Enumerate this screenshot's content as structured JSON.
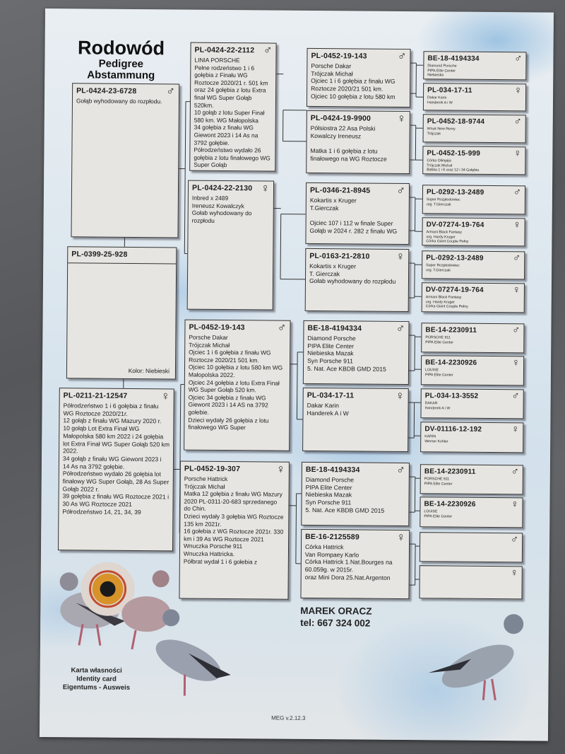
{
  "header": {
    "title": "Rodowód",
    "subtitle_en": "Pedigree",
    "subtitle_de": "Abstammung"
  },
  "subject": {
    "ring": "PL-0424-23-6728",
    "sex": "male",
    "info": "Gołąb wyhodowany do rozpłodu."
  },
  "color_box": {
    "ring": "PL-0399-25-928",
    "color_label": "Kolor: Niebieski"
  },
  "dam": {
    "ring": "PL-0211-21-12547",
    "sex": "female",
    "info": "Półrodzeństwo 1 i 6 gołębia z finału WG Roztocze 2020/21r.\n12 gołąb z finału WG Mazury 2020 r.\n10 gołąb Lot Extra Finał WG Małopolska 580 km 2022 i 24 gołębia lot Extra Finał WG Super Gołąb 520 km 2022.\n34 gołąb z finału WG Giewont 2023 i 14 As na 3792 gołębie.\nPółrodzeństwo wydało 26 gołębia lot finałowy WG Super Gołąb, 28 As Super Gołąb 2022 r.\n39 gołębia z finału WG Roztocze 2021 i 30 As WG Roztocze 2021\nPółrodzeństwo 14, 21, 34, 39"
  },
  "generation2": [
    {
      "ring": "PL-0424-22-2112",
      "sex": "male",
      "info": "LINIA PORSCHE\nPełne rodzeństwo 1 i 6 gołębia z Finału WG Roztocze 2020/21 r. 501 km oraz 24 gołębia z lotu Extra finał WG Super Gołąb 520km.\n10 gołąb z lotu Super Finał  580 km. WG Małopolska\n34 gołębia z finału WG Giewont 2023 i 14 As na 3792 gołębie.\nPółrodzeństwo wydało 26 gołębia z lotu finałowego WG Super Gołąb"
    },
    {
      "ring": "PL-0424-22-2130",
      "sex": "female",
      "info": "Inbred x 2489\nIreneusz Kowalczyk\nGołab wyhodowany do rozpłodu"
    },
    {
      "ring": "PL-0452-19-143",
      "sex": "male",
      "info": "Porsche Dakar\nTrójczak Michał\nOjciec 1 i 6 gołębia z finału WG Roztocze 2020/21 501 km.\nOjciec 10 gołębia z lotu 580 km WG Małopolska 2022.\nOjciec 24 gołębia z lotu Extra Finał WG Super Gołąb 520 km.\nOjciec 34 gołębia z finału WG Giewont 2023 i 14 AS na 3792 gołebie.\nDzieci wydały 26 gołębia z lotu finałowego WG Super"
    },
    {
      "ring": "PL-0452-19-307",
      "sex": "female",
      "info": "Porsche Hattrick\nTrójczak Michał\nMatka 12 gołębia z finału WG Mazury 2020 PL-0311-20-683 sprzedanego do Chin.\nDzieci wydały 3 gołębia WG Roztocze 135 km 2021r.\n16 gołebia z WG Roztocze 2021r. 330 km i 39 As WG Roztocze 2021\nWnuczka Porsche 911\nWnuczka Hattricka.\nPółbrat wydał 1 i 6 gołebia z"
    }
  ],
  "generation3": [
    {
      "ring": "PL-0452-19-143",
      "sex": "male",
      "info": "Porsche Dakar\nTrójczak Michał\nOjciec 1 i 6 gołębia z finału WG Roztocze 2020/21 501 km.\nOjciec 10 gołębia z lotu 580 km"
    },
    {
      "ring": "PL-0424-19-9900",
      "sex": "female",
      "info": "Półsiostra 22 Asa Polski\nKowalczy Ireneusz\n\nMatka 1 i 6 gołębia z lotu finałowego na WG Roztocze"
    },
    {
      "ring": "PL-0346-21-8945",
      "sex": "male",
      "info": "Kokartis x Kruger\nT.Gierczak\n\nOjciec 107 i 112 w finale Super Gołąb w 2024 r.  282 z finału WG"
    },
    {
      "ring": "PL-0163-21-2810",
      "sex": "female",
      "info": "Kokartis x Kruger\nT. Gierczak\nGołab wyhodowany do rozpłodu"
    },
    {
      "ring": "BE-18-4194334",
      "sex": "male",
      "info": "Diamond Porsche\nPIPA Elite Center\nNiebieska Mazak\nSyn Porsche 911\n5. Nat. Ace KBDB GMD 2015"
    },
    {
      "ring": "PL-034-17-11",
      "sex": "female",
      "info": "Dakar Karin\nHanderek A i W"
    },
    {
      "ring": "BE-18-4194334",
      "sex": "male",
      "info": "Diamond Porsche\nPIPA Elite Center\nNiebieska Mazak\nSyn Porsche 911\n5. Nat. Ace KBDB GMD 2015"
    },
    {
      "ring": "BE-16-2125589",
      "sex": "female",
      "info": "Córka Hattrick\nVan Rompaey Karlo\nCórka Hattrick  1.Nat.Bourges na 60.059g. w 2015r.\noraz Mini Dora 25.Nat.Argenton"
    }
  ],
  "generation4": [
    {
      "ring": "BE-18-4194334",
      "sex": "male",
      "info": "Diamond Porsche\nPIPA Elite Center\nNiebieska"
    },
    {
      "ring": "PL-034-17-11",
      "sex": "female",
      "info": "Dakar Karin\nHanderek A i W"
    },
    {
      "ring": "PL-0452-18-9744",
      "sex": "male",
      "info": "Wnuk New Remy\nTrójczak"
    },
    {
      "ring": "PL-0452-15-999",
      "sex": "female",
      "info": "Córka Olimpijic\nTrójczak Michał\nBabka 1 i 6 oraz 12 i 34 Gołębia"
    },
    {
      "ring": "PL-0292-13-2489",
      "sex": "male",
      "info": "Super Rozpłodowiec\norg. T.Gierczak"
    },
    {
      "ring": "DV-07274-19-764",
      "sex": "female",
      "info": "Armani Black Fantasy\norg. Hardy Kruger\nCórka Giant Couple Pełny"
    },
    {
      "ring": "PL-0292-13-2489",
      "sex": "male",
      "info": "Super Rozpłodowiec\norg. T.Gierczak"
    },
    {
      "ring": "DV-07274-19-764",
      "sex": "female",
      "info": "Armani Black Fantasy\norg. Hardy Kruger\nCórka Giant Couple Pełny"
    },
    {
      "ring": "BE-14-2230911",
      "sex": "male",
      "info": "PORSCHE 911\nPIPA Elite Center"
    },
    {
      "ring": "BE-14-2230926",
      "sex": "female",
      "info": "LOUISE\nPIPA Elite Center"
    },
    {
      "ring": "PL-034-13-3552",
      "sex": "male",
      "info": "DAKAR\nHanderek A i W"
    },
    {
      "ring": "DV-01116-12-192",
      "sex": "female",
      "info": "KARIN\nWerner Kohler"
    },
    {
      "ring": "BE-14-2230911",
      "sex": "male",
      "info": "PORSCHE 911\nPIPA Elite Center"
    },
    {
      "ring": "BE-14-2230926",
      "sex": "female",
      "info": "LOUISE\nPIPA Elite Center"
    },
    {
      "ring": "",
      "sex": "male",
      "info": ""
    },
    {
      "ring": "",
      "sex": "female",
      "info": ""
    }
  ],
  "owner": {
    "name": "MAREK ORACZ",
    "phone": "tel: 667 324 002"
  },
  "card": {
    "pl": "Karta własności",
    "en": "Identity card",
    "de": "Eigentums - Ausweis"
  },
  "version": "MEG v.2.12.3",
  "symbols": {
    "male": "♂",
    "female": "♀"
  },
  "colors": {
    "paper_sky": "#d3e1ec",
    "box_fill": "#e6e5e1",
    "carpet": "#5b5d60"
  }
}
